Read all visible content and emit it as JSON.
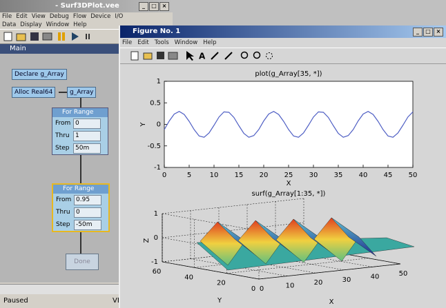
{
  "vee_window": {
    "title": "- Surf3DPlot.vee",
    "menu_row1": [
      "File",
      "Edit",
      "View",
      "Debug",
      "Flow",
      "Device",
      "I/O"
    ],
    "menu_row2": [
      "Data",
      "Display",
      "Window",
      "Help"
    ],
    "panel_title": "Main",
    "declare": "Declare g_Array",
    "alloc": "Alloc Real64",
    "array": "g_Array",
    "loop1": {
      "title": "For Range",
      "from_label": "From",
      "from": "0",
      "thru_label": "Thru",
      "thru": "1",
      "step_label": "Step",
      "step": "50m"
    },
    "loop2": {
      "title": "For Range",
      "from_label": "From",
      "from": "0.95",
      "thru_label": "Thru",
      "thru": "0",
      "step_label": "Step",
      "step": "-50m"
    },
    "done": "Done",
    "status": "Paused",
    "status_right": "VE"
  },
  "figure_window": {
    "title": "Figure No. 1",
    "menu": [
      "File",
      "Edit",
      "Tools",
      "Window",
      "Help"
    ]
  },
  "chart_data": [
    {
      "type": "line",
      "title": "plot(g_Array[35, *])",
      "x_label": "X",
      "y_label": "Y",
      "x": [
        0,
        1,
        2,
        3,
        4,
        5,
        6,
        7,
        8,
        9,
        10,
        11,
        12,
        13,
        14,
        15,
        16,
        17,
        18,
        19,
        20,
        21,
        22,
        23,
        24,
        25,
        26,
        27,
        28,
        29,
        30,
        31,
        32,
        33,
        34,
        35,
        36,
        37,
        38,
        39,
        40,
        41,
        42,
        43,
        44,
        45,
        46,
        47,
        48,
        49,
        50
      ],
      "series": [
        {
          "color": "#4f5fc4",
          "values": [
            -0.12,
            0.08,
            0.24,
            0.3,
            0.23,
            0.07,
            -0.12,
            -0.27,
            -0.3,
            -0.2,
            -0.02,
            0.17,
            0.29,
            0.28,
            0.16,
            -0.03,
            -0.21,
            -0.3,
            -0.26,
            -0.12,
            0.08,
            0.24,
            0.3,
            0.23,
            0.07,
            -0.12,
            -0.27,
            -0.3,
            -0.2,
            -0.02,
            0.17,
            0.29,
            0.28,
            0.16,
            -0.03,
            -0.21,
            -0.3,
            -0.26,
            -0.12,
            0.08,
            0.24,
            0.3,
            0.23,
            0.07,
            -0.12,
            -0.27,
            -0.3,
            -0.2,
            -0.02,
            0.17,
            0.29
          ]
        }
      ],
      "xlim": [
        0,
        50
      ],
      "xticks": [
        0,
        5,
        10,
        15,
        20,
        25,
        30,
        35,
        40,
        45,
        50
      ],
      "ylim": [
        -1,
        1
      ],
      "yticks": [
        -1,
        -0.5,
        0,
        0.5,
        1
      ]
    },
    {
      "type": "surface",
      "title": "surf(g_Array[1:35, *])",
      "x_label": "X",
      "y_label": "Y",
      "z_label": "Z",
      "xlim": [
        0,
        50
      ],
      "xticks": [
        0,
        10,
        20,
        30,
        40,
        50
      ],
      "ylim": [
        0,
        60
      ],
      "yticks": [
        0,
        20,
        40,
        60
      ],
      "zlim": [
        -1,
        1
      ],
      "zticks": [
        -1,
        0,
        1
      ]
    }
  ]
}
